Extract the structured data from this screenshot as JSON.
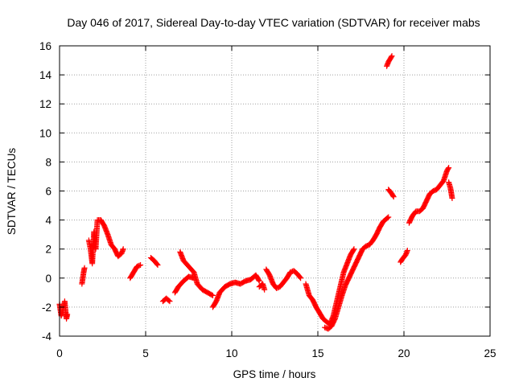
{
  "chart_data": {
    "type": "scatter",
    "title": "Day 046 of 2017, Sidereal Day-to-day VTEC variation (SDTVAR) for receiver mabs",
    "xlabel": "GPS time / hours",
    "ylabel": "SDTVAR / TECUs",
    "xlim": [
      0,
      25
    ],
    "ylim": [
      -4,
      16
    ],
    "xticks": [
      "0",
      "5",
      "10",
      "15",
      "20",
      "25"
    ],
    "yticks": [
      "-4",
      "-2",
      "0",
      "2",
      "4",
      "6",
      "8",
      "10",
      "12",
      "14",
      "16"
    ],
    "grid": true,
    "marker": "plus",
    "color": "#ff0000",
    "segments": [
      [
        [
          0.0,
          -1.8
        ],
        [
          0.1,
          -2.6
        ],
        [
          0.2,
          -2.2
        ],
        [
          0.3,
          -1.6
        ],
        [
          0.4,
          -2.8
        ],
        [
          0.45,
          -2.5
        ]
      ],
      [
        [
          1.3,
          -0.4
        ],
        [
          1.4,
          0.4
        ],
        [
          1.45,
          0.7
        ]
      ],
      [
        [
          1.7,
          2.6
        ],
        [
          1.8,
          2.0
        ],
        [
          1.9,
          1.0
        ],
        [
          2.0,
          3.2
        ],
        [
          2.1,
          2.0
        ],
        [
          2.2,
          4.0
        ],
        [
          2.4,
          4.0
        ],
        [
          2.6,
          3.6
        ],
        [
          2.8,
          3.0
        ],
        [
          3.0,
          2.3
        ],
        [
          3.2,
          2.0
        ],
        [
          3.4,
          1.5
        ],
        [
          3.6,
          1.7
        ],
        [
          3.7,
          2.0
        ]
      ],
      [
        [
          4.1,
          0.0
        ],
        [
          4.3,
          0.4
        ],
        [
          4.5,
          0.8
        ],
        [
          4.7,
          0.9
        ]
      ],
      [
        [
          5.3,
          1.4
        ],
        [
          5.5,
          1.2
        ],
        [
          5.7,
          0.9
        ]
      ],
      [
        [
          6.0,
          -1.6
        ],
        [
          6.2,
          -1.4
        ],
        [
          6.4,
          -1.6
        ]
      ],
      [
        [
          6.7,
          -1.0
        ],
        [
          6.9,
          -0.6
        ],
        [
          7.2,
          -0.2
        ],
        [
          7.5,
          0.1
        ],
        [
          7.8,
          0.0
        ]
      ],
      [
        [
          7.0,
          1.8
        ],
        [
          7.2,
          1.2
        ],
        [
          7.5,
          0.8
        ],
        [
          7.8,
          0.4
        ],
        [
          8.0,
          -0.4
        ],
        [
          8.3,
          -0.8
        ],
        [
          8.6,
          -1.0
        ],
        [
          8.9,
          -1.2
        ]
      ],
      [
        [
          8.9,
          -2.0
        ],
        [
          9.1,
          -1.6
        ],
        [
          9.3,
          -1.0
        ],
        [
          9.6,
          -0.6
        ],
        [
          9.9,
          -0.4
        ],
        [
          10.2,
          -0.3
        ],
        [
          10.5,
          -0.4
        ],
        [
          10.8,
          -0.2
        ],
        [
          11.1,
          -0.1
        ],
        [
          11.4,
          0.2
        ],
        [
          11.6,
          -0.2
        ]
      ],
      [
        [
          11.6,
          -0.6
        ],
        [
          11.8,
          -0.4
        ],
        [
          11.9,
          -0.8
        ]
      ],
      [
        [
          12.0,
          0.6
        ],
        [
          12.2,
          0.2
        ],
        [
          12.4,
          -0.4
        ],
        [
          12.6,
          -0.7
        ],
        [
          12.8,
          -0.6
        ],
        [
          13.0,
          -0.3
        ],
        [
          13.2,
          0.0
        ],
        [
          13.4,
          0.4
        ],
        [
          13.6,
          0.5
        ],
        [
          13.8,
          0.3
        ],
        [
          14.0,
          0.0
        ]
      ],
      [
        [
          14.3,
          -0.4
        ],
        [
          14.5,
          -1.2
        ],
        [
          14.7,
          -1.5
        ],
        [
          14.9,
          -2.0
        ],
        [
          15.1,
          -2.4
        ],
        [
          15.3,
          -2.8
        ],
        [
          15.5,
          -3.0
        ],
        [
          15.7,
          -3.2
        ],
        [
          15.9,
          -2.6
        ],
        [
          16.1,
          -1.6
        ],
        [
          16.3,
          -0.6
        ],
        [
          16.5,
          0.4
        ],
        [
          16.7,
          1.0
        ],
        [
          16.9,
          1.6
        ],
        [
          17.1,
          2.0
        ]
      ],
      [
        [
          15.4,
          -3.4
        ],
        [
          15.6,
          -3.5
        ],
        [
          15.8,
          -3.3
        ],
        [
          16.0,
          -2.8
        ],
        [
          16.2,
          -2.0
        ],
        [
          16.4,
          -1.2
        ],
        [
          16.6,
          -0.5
        ],
        [
          16.8,
          0.0
        ],
        [
          17.0,
          0.5
        ],
        [
          17.2,
          1.0
        ],
        [
          17.4,
          1.5
        ],
        [
          17.6,
          2.0
        ],
        [
          17.8,
          2.2
        ],
        [
          18.0,
          2.3
        ],
        [
          18.2,
          2.6
        ],
        [
          18.4,
          3.0
        ],
        [
          18.6,
          3.5
        ],
        [
          18.8,
          3.9
        ],
        [
          19.0,
          4.1
        ],
        [
          19.1,
          4.2
        ]
      ],
      [
        [
          19.0,
          14.6
        ],
        [
          19.1,
          14.9
        ],
        [
          19.2,
          15.1
        ],
        [
          19.3,
          15.3
        ]
      ],
      [
        [
          19.1,
          6.1
        ],
        [
          19.3,
          5.8
        ],
        [
          19.4,
          5.6
        ]
      ],
      [
        [
          19.8,
          1.1
        ],
        [
          19.9,
          1.3
        ],
        [
          20.1,
          1.6
        ],
        [
          20.2,
          1.9
        ]
      ],
      [
        [
          20.3,
          3.8
        ],
        [
          20.5,
          4.3
        ],
        [
          20.7,
          4.6
        ],
        [
          20.9,
          4.6
        ],
        [
          21.1,
          4.8
        ],
        [
          21.3,
          5.3
        ],
        [
          21.5,
          5.8
        ],
        [
          21.7,
          6.0
        ],
        [
          21.9,
          6.1
        ],
        [
          22.1,
          6.4
        ],
        [
          22.3,
          6.7
        ],
        [
          22.5,
          7.4
        ],
        [
          22.6,
          7.6
        ]
      ],
      [
        [
          22.6,
          6.6
        ],
        [
          22.7,
          6.2
        ],
        [
          22.8,
          5.5
        ]
      ]
    ]
  }
}
